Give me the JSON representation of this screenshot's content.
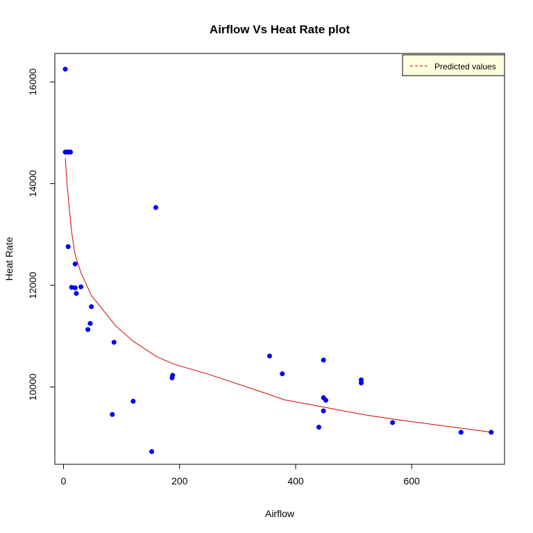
{
  "chart_data": {
    "type": "scatter",
    "title": "Airflow Vs Heat Rate plot",
    "xlabel": "Airflow",
    "ylabel": "Heat Rate",
    "xlim": [
      -15,
      760
    ],
    "ylim": [
      8480,
      16560
    ],
    "xticks": [
      0,
      200,
      400,
      600
    ],
    "yticks": [
      10000,
      12000,
      14000,
      16000
    ],
    "grid": false,
    "legend": {
      "position": "top-right",
      "entries": [
        "Predicted values"
      ]
    },
    "colors": {
      "points": "#0000ff",
      "line": "#cc0000",
      "legend_bg": "#ffffe0",
      "frame": "#000000"
    },
    "series": [
      {
        "name": "",
        "kind": "points",
        "x": [
          3,
          3,
          6,
          8,
          10,
          12,
          8,
          14,
          20,
          20,
          22,
          30,
          48,
          42,
          46,
          87,
          84,
          120,
          152,
          159,
          187,
          188,
          355,
          377,
          440,
          448,
          448,
          448,
          452,
          513,
          513,
          567,
          685,
          737
        ],
        "y": [
          16250,
          14620,
          14620,
          14620,
          14620,
          14620,
          12760,
          11960,
          12420,
          11950,
          11840,
          11970,
          11580,
          11130,
          11250,
          10880,
          9460,
          9720,
          8730,
          13530,
          10180,
          10230,
          10610,
          10260,
          9210,
          10530,
          9790,
          9530,
          9740,
          10140,
          10080,
          9300,
          9110,
          9110
        ]
      },
      {
        "name": "Predicted values",
        "kind": "line",
        "x": [
          3,
          6,
          10,
          14,
          20,
          30,
          48,
          90,
          120,
          160,
          190,
          250,
          355,
          380,
          450,
          520,
          567,
          685,
          737
        ],
        "y": [
          14500,
          14000,
          13500,
          13050,
          12600,
          12250,
          11800,
          11200,
          10900,
          10600,
          10450,
          10250,
          9850,
          9750,
          9600,
          9450,
          9370,
          9190,
          9110
        ]
      }
    ]
  }
}
